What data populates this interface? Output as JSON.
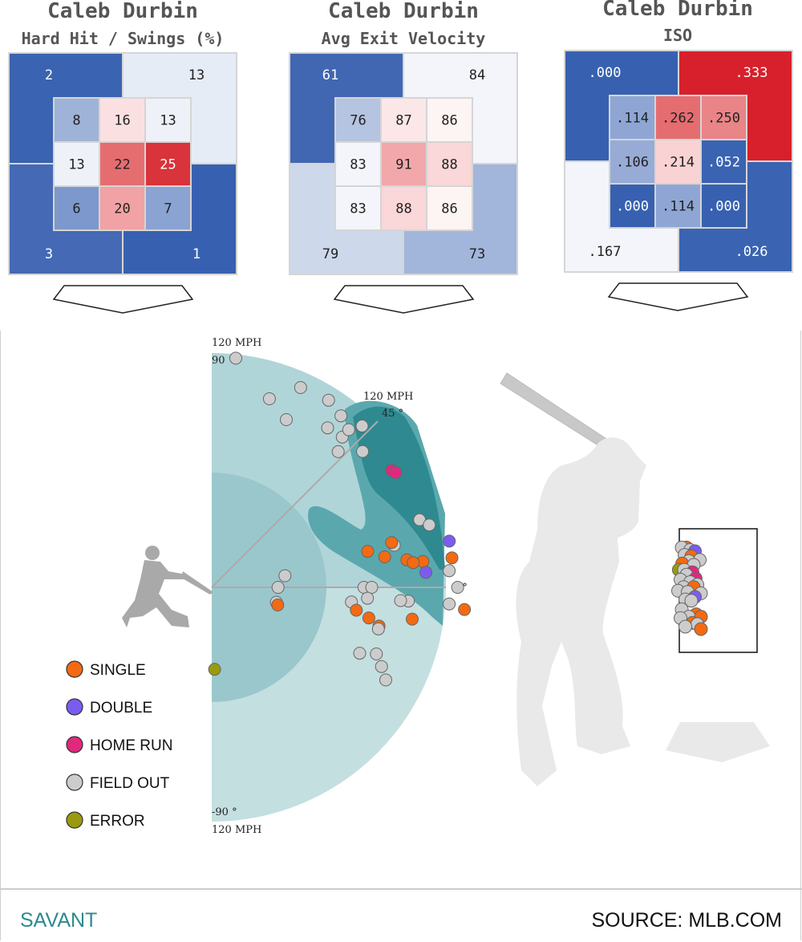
{
  "colors": {
    "strong_blue": "#3761b0",
    "strong_red": "#d7202b",
    "zone_grid": "#cfcfcf",
    "spray_light": "#c4dfe0",
    "spray_mid": "#a9d0d3",
    "spray_inner": "#9ac7cc",
    "spray_band": "#5aa8ad",
    "spray_dark": "#2e8a90",
    "single": "#f36a12",
    "double": "#7b5cf0",
    "home_run": "#e0287f",
    "field_out": "#cccccc",
    "error": "#9a9a10"
  },
  "chart_data": [
    {
      "type": "heatmap",
      "player": "Caleb Durbin",
      "title": "Hard Hit / Swings (%)",
      "outer": {
        "top_left": "2",
        "top_right": "13",
        "bottom_left": "3",
        "bottom_right": "1"
      },
      "inner": [
        [
          "8",
          "16",
          "13"
        ],
        [
          "13",
          "22",
          "25"
        ],
        [
          "6",
          "20",
          "7"
        ]
      ]
    },
    {
      "type": "heatmap",
      "player": "Caleb Durbin",
      "title": "Avg Exit Velocity",
      "outer": {
        "top_left": "61",
        "top_right": "84",
        "bottom_left": "79",
        "bottom_right": "73"
      },
      "inner": [
        [
          "76",
          "87",
          "86"
        ],
        [
          "83",
          "91",
          "88"
        ],
        [
          "83",
          "88",
          "86"
        ]
      ]
    },
    {
      "type": "heatmap",
      "player": "Caleb Durbin",
      "title": "ISO",
      "outer": {
        "top_left": ".000",
        "top_right": ".333",
        "bottom_left": ".167",
        "bottom_right": ".026"
      },
      "inner": [
        [
          ".114",
          ".262",
          ".250"
        ],
        [
          ".106",
          ".214",
          ".052"
        ],
        [
          ".000",
          ".114",
          ".000"
        ]
      ]
    },
    {
      "type": "scatter",
      "coordinate_system": "polar",
      "radius_unit": "MPH",
      "r_max": 120,
      "angle_range": [
        -90,
        90
      ],
      "labels": {
        "top_speed": "120 MPH",
        "top_angle": "90 °",
        "diag_speed": "120 MPH",
        "diag_angle": "45 °",
        "zero_angle": "0 °",
        "bottom_angle": "-90 °",
        "bottom_speed": "120 MPH"
      },
      "legend": [
        {
          "key": "single",
          "label": "SINGLE"
        },
        {
          "key": "double",
          "label": "DOUBLE"
        },
        {
          "key": "home_run",
          "label": "HOME RUN"
        },
        {
          "key": "field_out",
          "label": "FIELD OUT"
        },
        {
          "key": "error",
          "label": "ERROR"
        }
      ],
      "points": [
        {
          "type": "field_out",
          "speed": 118,
          "angle": 84
        },
        {
          "type": "field_out",
          "speed": 101,
          "angle": 73
        },
        {
          "type": "field_out",
          "speed": 94,
          "angle": 66
        },
        {
          "type": "field_out",
          "speed": 112,
          "angle": 66
        },
        {
          "type": "field_out",
          "speed": 113,
          "angle": 58
        },
        {
          "type": "field_out",
          "speed": 101,
          "angle": 54
        },
        {
          "type": "field_out",
          "speed": 110,
          "angle": 53
        },
        {
          "type": "field_out",
          "speed": 102,
          "angle": 49
        },
        {
          "type": "field_out",
          "speed": 107,
          "angle": 49
        },
        {
          "type": "field_out",
          "speed": 113,
          "angle": 47
        },
        {
          "type": "field_out",
          "speed": 95,
          "angle": 47
        },
        {
          "type": "field_out",
          "speed": 104,
          "angle": 42
        },
        {
          "type": "home_run",
          "speed": 110,
          "angle": 33
        },
        {
          "type": "home_run",
          "speed": 111,
          "angle": 32
        },
        {
          "type": "field_out",
          "speed": 96,
          "angle": 13
        },
        {
          "type": "field_out",
          "speed": 112,
          "angle": 18
        },
        {
          "type": "field_out",
          "speed": 116,
          "angle": 16
        },
        {
          "type": "single",
          "speed": 82,
          "angle": 13
        },
        {
          "type": "single",
          "speed": 95,
          "angle": 14
        },
        {
          "type": "single",
          "speed": 90,
          "angle": 10
        },
        {
          "type": "single",
          "speed": 101,
          "angle": 8
        },
        {
          "type": "single",
          "speed": 109,
          "angle": 7
        },
        {
          "type": "single",
          "speed": 104,
          "angle": 7
        },
        {
          "type": "double",
          "speed": 124,
          "angle": 11
        },
        {
          "type": "double",
          "speed": 110,
          "angle": 4
        },
        {
          "type": "single",
          "speed": 124,
          "angle": 7
        },
        {
          "type": "field_out",
          "speed": 122,
          "angle": 4
        },
        {
          "type": "field_out",
          "speed": 38,
          "angle": 9
        },
        {
          "type": "field_out",
          "speed": 34,
          "angle": 0
        },
        {
          "type": "field_out",
          "speed": 78,
          "angle": 0
        },
        {
          "type": "field_out",
          "speed": 82,
          "angle": 0
        },
        {
          "type": "field_out",
          "speed": 101,
          "angle": -4
        },
        {
          "type": "field_out",
          "speed": 80,
          "angle": -4
        },
        {
          "type": "field_out",
          "speed": 97,
          "angle": -4
        },
        {
          "type": "field_out",
          "speed": 126,
          "angle": 0
        },
        {
          "type": "field_out",
          "speed": 122,
          "angle": -4
        },
        {
          "type": "single",
          "speed": 104,
          "angle": -9
        },
        {
          "type": "single",
          "speed": 130,
          "angle": -5
        },
        {
          "type": "field_out",
          "speed": 72,
          "angle": -6
        },
        {
          "type": "single",
          "speed": 75,
          "angle": -9
        },
        {
          "type": "single",
          "speed": 82,
          "angle": -11
        },
        {
          "type": "single",
          "speed": 88,
          "angle": -13
        },
        {
          "type": "field_out",
          "speed": 88,
          "angle": -14
        },
        {
          "type": "field_out",
          "speed": 34,
          "angle": -13
        },
        {
          "type": "single",
          "speed": 35,
          "angle": -15
        },
        {
          "type": "field_out",
          "speed": 91,
          "angle": -22
        },
        {
          "type": "field_out",
          "speed": 83,
          "angle": -24
        },
        {
          "type": "field_out",
          "speed": 96,
          "angle": -25
        },
        {
          "type": "field_out",
          "speed": 101,
          "angle": -28
        },
        {
          "type": "error",
          "speed": 42,
          "angle": -88
        }
      ]
    },
    {
      "type": "scatter",
      "description_key": "pitch_location",
      "points": [
        {
          "type": "single",
          "x": 0.3,
          "y": 0.9
        },
        {
          "type": "field_out",
          "x": 0.1,
          "y": 0.9
        },
        {
          "type": "field_out",
          "x": 0.45,
          "y": 0.88
        },
        {
          "type": "double",
          "x": 0.65,
          "y": 0.87
        },
        {
          "type": "field_out",
          "x": 0.22,
          "y": 0.84
        },
        {
          "type": "single",
          "x": 0.5,
          "y": 0.83
        },
        {
          "type": "field_out",
          "x": 0.85,
          "y": 0.8
        },
        {
          "type": "field_out",
          "x": 0.4,
          "y": 0.79
        },
        {
          "type": "single",
          "x": 0.12,
          "y": 0.77
        },
        {
          "type": "field_out",
          "x": 0.6,
          "y": 0.76
        },
        {
          "type": "error",
          "x": -0.02,
          "y": 0.72
        },
        {
          "type": "field_out",
          "x": 0.2,
          "y": 0.72
        },
        {
          "type": "home_run",
          "x": 0.55,
          "y": 0.7
        },
        {
          "type": "field_out",
          "x": 0.3,
          "y": 0.68
        },
        {
          "type": "home_run",
          "x": 0.68,
          "y": 0.65
        },
        {
          "type": "field_out",
          "x": 0.05,
          "y": 0.64
        },
        {
          "type": "field_out",
          "x": 0.45,
          "y": 0.62
        },
        {
          "type": "field_out",
          "x": 0.75,
          "y": 0.6
        },
        {
          "type": "field_out",
          "x": 0.18,
          "y": 0.58
        },
        {
          "type": "single",
          "x": 0.6,
          "y": 0.58
        },
        {
          "type": "field_out",
          "x": -0.05,
          "y": 0.55
        },
        {
          "type": "field_out",
          "x": 0.35,
          "y": 0.54
        },
        {
          "type": "field_out",
          "x": 0.9,
          "y": 0.53
        },
        {
          "type": "double",
          "x": 0.65,
          "y": 0.5
        },
        {
          "type": "field_out",
          "x": 0.25,
          "y": 0.48
        },
        {
          "type": "field_out",
          "x": 0.5,
          "y": 0.47
        },
        {
          "type": "field_out",
          "x": 0.1,
          "y": 0.4
        },
        {
          "type": "single",
          "x": 0.7,
          "y": 0.36
        },
        {
          "type": "field_out",
          "x": 0.4,
          "y": 0.34
        },
        {
          "type": "single",
          "x": 0.9,
          "y": 0.34
        },
        {
          "type": "field_out",
          "x": 0.05,
          "y": 0.33
        },
        {
          "type": "single",
          "x": 0.55,
          "y": 0.29
        },
        {
          "type": "field_out",
          "x": 0.75,
          "y": 0.28
        },
        {
          "type": "field_out",
          "x": 0.25,
          "y": 0.26
        },
        {
          "type": "single",
          "x": 0.9,
          "y": 0.24
        }
      ]
    }
  ],
  "footer": {
    "left": "SAVANT",
    "right": "SOURCE: MLB.COM"
  }
}
